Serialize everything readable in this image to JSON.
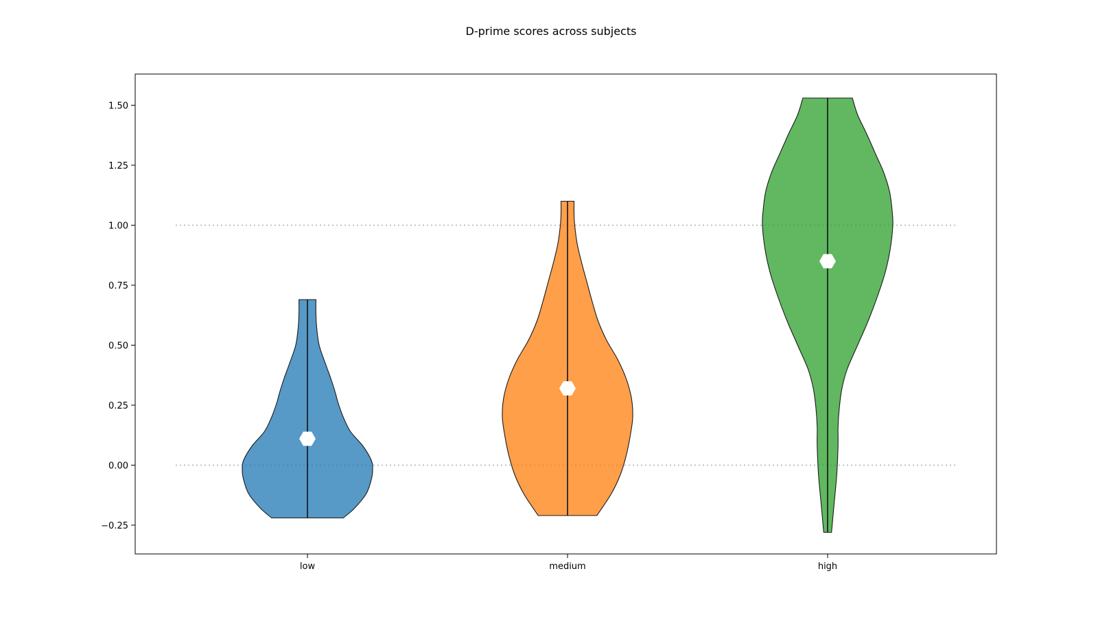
{
  "chart_data": {
    "type": "violin",
    "title": "D-prime scores across subjects",
    "xlabel": "",
    "ylabel": "",
    "categories": [
      "low",
      "medium",
      "high"
    ],
    "ylim": [
      -0.37,
      1.63
    ],
    "yticks": [
      -0.25,
      0.0,
      0.25,
      0.5,
      0.75,
      1.0,
      1.25,
      1.5
    ],
    "ytick_labels": [
      "−0.25",
      "0.00",
      "0.25",
      "0.50",
      "0.75",
      "1.00",
      "1.25",
      "1.50"
    ],
    "reference_lines": [
      0.0,
      1.0
    ],
    "grid": false,
    "series": [
      {
        "category": "low",
        "color": "#1f77b4",
        "min": -0.22,
        "max": 0.69,
        "center_marker": 0.11,
        "density_profile": [
          [
            -0.22,
            0.55
          ],
          [
            -0.18,
            0.72
          ],
          [
            -0.12,
            0.9
          ],
          [
            -0.06,
            0.98
          ],
          [
            -0.02,
            1.0
          ],
          [
            0.02,
            0.98
          ],
          [
            0.08,
            0.85
          ],
          [
            0.14,
            0.66
          ],
          [
            0.2,
            0.55
          ],
          [
            0.26,
            0.47
          ],
          [
            0.3,
            0.43
          ],
          [
            0.36,
            0.36
          ],
          [
            0.42,
            0.28
          ],
          [
            0.5,
            0.18
          ],
          [
            0.58,
            0.14
          ],
          [
            0.64,
            0.13
          ],
          [
            0.69,
            0.13
          ]
        ]
      },
      {
        "category": "medium",
        "color": "#ff7f0e",
        "min": -0.21,
        "max": 1.1,
        "center_marker": 0.32,
        "density_profile": [
          [
            -0.21,
            0.45
          ],
          [
            -0.12,
            0.67
          ],
          [
            -0.04,
            0.81
          ],
          [
            0.04,
            0.9
          ],
          [
            0.12,
            0.96
          ],
          [
            0.2,
            1.0
          ],
          [
            0.28,
            0.98
          ],
          [
            0.36,
            0.9
          ],
          [
            0.44,
            0.77
          ],
          [
            0.52,
            0.6
          ],
          [
            0.6,
            0.47
          ],
          [
            0.68,
            0.38
          ],
          [
            0.76,
            0.3
          ],
          [
            0.84,
            0.22
          ],
          [
            0.92,
            0.15
          ],
          [
            1.0,
            0.11
          ],
          [
            1.05,
            0.1
          ],
          [
            1.1,
            0.1
          ]
        ]
      },
      {
        "category": "high",
        "color": "#2ca02c",
        "min": -0.28,
        "max": 1.53,
        "center_marker": 0.85,
        "density_profile": [
          [
            -0.28,
            0.06
          ],
          [
            -0.16,
            0.1
          ],
          [
            -0.04,
            0.14
          ],
          [
            0.08,
            0.16
          ],
          [
            0.16,
            0.16
          ],
          [
            0.24,
            0.18
          ],
          [
            0.32,
            0.22
          ],
          [
            0.4,
            0.3
          ],
          [
            0.5,
            0.46
          ],
          [
            0.6,
            0.62
          ],
          [
            0.7,
            0.76
          ],
          [
            0.8,
            0.88
          ],
          [
            0.9,
            0.96
          ],
          [
            1.0,
            1.0
          ],
          [
            1.06,
            0.99
          ],
          [
            1.14,
            0.95
          ],
          [
            1.22,
            0.86
          ],
          [
            1.3,
            0.73
          ],
          [
            1.38,
            0.6
          ],
          [
            1.46,
            0.46
          ],
          [
            1.53,
            0.38
          ]
        ]
      }
    ]
  }
}
